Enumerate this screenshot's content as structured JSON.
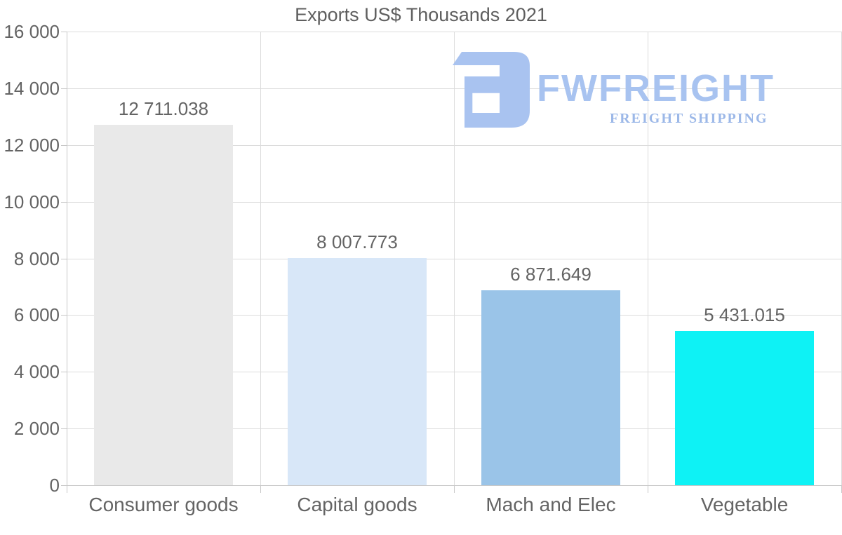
{
  "title": "Exports US$ Thousands 2021",
  "logo": {
    "wordmark": "FWFREIGHT",
    "subtitle": "FREIGHT SHIPPING",
    "wordmark_color": "#a8c3f0",
    "subtitle_color": "#9cb8e8",
    "icon_color": "#a9c3f0"
  },
  "chart_data": {
    "type": "bar",
    "title": "Exports US$ Thousands 2021",
    "categories": [
      "Consumer goods",
      "Capital goods",
      "Mach and Elec",
      "Vegetable"
    ],
    "values": [
      12711.038,
      8007.773,
      6871.649,
      5431.015
    ],
    "value_labels": [
      "12 711.038",
      "8 007.773",
      "6 871.649",
      "5 431.015"
    ],
    "bar_colors": [
      "#e9e9e9",
      "#d8e7f8",
      "#9ac4e8",
      "#0ef2f5"
    ],
    "xlabel": "",
    "ylabel": "",
    "ylim": [
      0,
      16000
    ],
    "ytick_step": 2000,
    "ytick_labels": [
      "0",
      "2 000",
      "4 000",
      "6 000",
      "8 000",
      "10 000",
      "12 000",
      "14 000",
      "16 000"
    ],
    "grid": true,
    "legend_position": "none",
    "text_color": "#646464",
    "grid_color": "#dcdcdc",
    "axis_color": "#c8c8c8"
  }
}
